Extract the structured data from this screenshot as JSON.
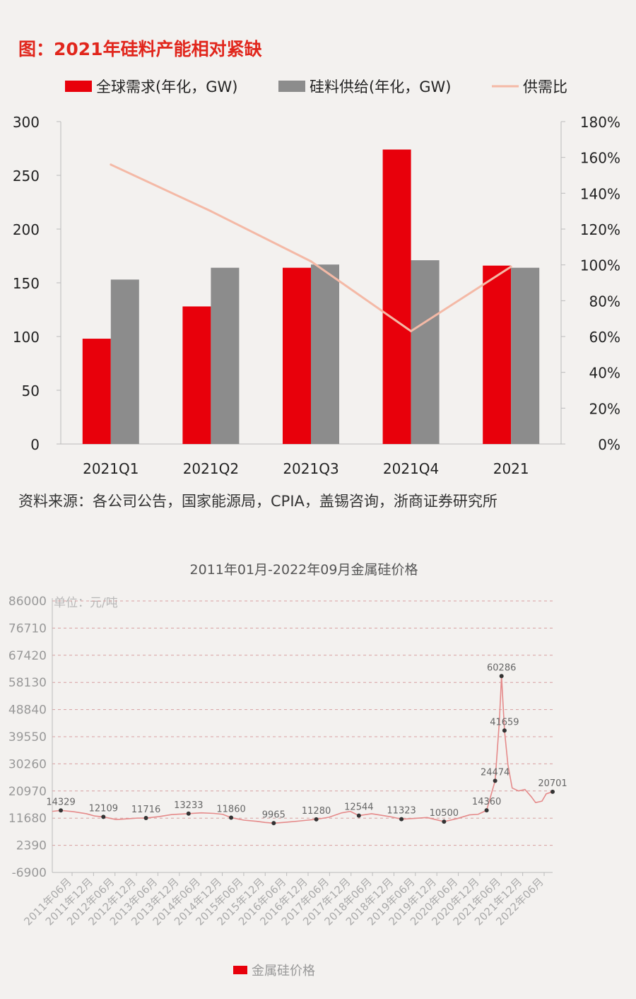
{
  "colors": {
    "demand": "#e8000b",
    "supply": "#8c8c8c",
    "ratio_line": "#f4b9a6",
    "price_line": "#e58a8a",
    "title_red": "#e1261c",
    "grid_dash": "#d8a0a0",
    "background": "#f3f1ef"
  },
  "chart_data": [
    {
      "type": "bar",
      "title": "图：2021年硅料产能相对紧缺",
      "categories": [
        "2021Q1",
        "2021Q2",
        "2021Q3",
        "2021Q4",
        "2021"
      ],
      "series": [
        {
          "name": "全球需求(年化，GW)",
          "kind": "bar",
          "axis": "left",
          "values": [
            98,
            128,
            164,
            274,
            166
          ]
        },
        {
          "name": "硅料供给(年化，GW)",
          "kind": "bar",
          "axis": "left",
          "values": [
            153,
            164,
            167,
            171,
            164
          ]
        },
        {
          "name": "供需比",
          "kind": "line",
          "axis": "right",
          "values": [
            1.56,
            1.3,
            1.02,
            0.63,
            0.99
          ]
        }
      ],
      "ylim": [
        0,
        300
      ],
      "y_ticks": [
        "300",
        "250",
        "200",
        "150",
        "100",
        "50",
        "0"
      ],
      "y2lim": [
        0,
        1.8
      ],
      "y2_ticks": [
        "180%",
        "160%",
        "140%",
        "120%",
        "100%",
        "80%",
        "60%",
        "40%",
        "20%",
        "0%"
      ],
      "legend_position": "top",
      "source": "资料来源：各公司公告，国家能源局，CPIA，盖锡咨询，浙商证券研究所"
    },
    {
      "type": "line",
      "title": "2011年01月-2022年09月金属硅价格",
      "unit_label": "单位：元/吨",
      "series_name": "金属硅价格",
      "ylim": [
        -6900,
        86000
      ],
      "y_ticks": [
        "86000",
        "76710",
        "67420",
        "58130",
        "48840",
        "39550",
        "30260",
        "20970",
        "11680",
        "2390",
        "-6900"
      ],
      "x_labels": [
        "2011年06月",
        "2011年12月",
        "2012年06月",
        "2012年12月",
        "2013年06月",
        "2013年12月",
        "2014年06月",
        "2014年12月",
        "2015年06月",
        "2015年12月",
        "2016年06月",
        "2016年12月",
        "2017年06月",
        "2017年12月",
        "2018年06月",
        "2018年12月",
        "2019年06月",
        "2019年12月",
        "2020年06月",
        "2020年12月",
        "2021年06月",
        "2021年12月",
        "2022年06月"
      ],
      "x_range": [
        2011.0,
        2022.75
      ],
      "line": [
        [
          2011.0,
          14000
        ],
        [
          2011.2,
          14329
        ],
        [
          2011.5,
          13900
        ],
        [
          2011.8,
          13200
        ],
        [
          2012.0,
          12400
        ],
        [
          2012.2,
          12109
        ],
        [
          2012.5,
          11200
        ],
        [
          2012.8,
          11500
        ],
        [
          2013.0,
          11700
        ],
        [
          2013.2,
          11716
        ],
        [
          2013.5,
          12200
        ],
        [
          2013.8,
          12900
        ],
        [
          2014.2,
          13233
        ],
        [
          2014.5,
          13500
        ],
        [
          2014.8,
          13300
        ],
        [
          2015.0,
          13000
        ],
        [
          2015.2,
          11860
        ],
        [
          2015.5,
          11000
        ],
        [
          2015.8,
          10600
        ],
        [
          2016.0,
          10200
        ],
        [
          2016.2,
          9965
        ],
        [
          2016.5,
          10300
        ],
        [
          2016.8,
          10700
        ],
        [
          2017.0,
          11000
        ],
        [
          2017.2,
          11280
        ],
        [
          2017.5,
          12000
        ],
        [
          2017.8,
          13500
        ],
        [
          2018.0,
          14000
        ],
        [
          2018.2,
          12544
        ],
        [
          2018.5,
          13200
        ],
        [
          2018.8,
          12500
        ],
        [
          2019.0,
          12000
        ],
        [
          2019.2,
          11323
        ],
        [
          2019.5,
          11600
        ],
        [
          2019.8,
          11900
        ],
        [
          2020.0,
          11200
        ],
        [
          2020.2,
          10500
        ],
        [
          2020.5,
          11500
        ],
        [
          2020.8,
          12800
        ],
        [
          2021.0,
          13000
        ],
        [
          2021.2,
          14360
        ],
        [
          2021.4,
          24474
        ],
        [
          2021.5,
          45000
        ],
        [
          2021.55,
          60286
        ],
        [
          2021.62,
          41659
        ],
        [
          2021.7,
          30000
        ],
        [
          2021.8,
          22000
        ],
        [
          2021.95,
          21000
        ],
        [
          2022.1,
          21500
        ],
        [
          2022.25,
          19000
        ],
        [
          2022.35,
          17000
        ],
        [
          2022.5,
          17500
        ],
        [
          2022.6,
          20000
        ],
        [
          2022.75,
          20701
        ]
      ],
      "labeled_points": [
        {
          "x": 2011.2,
          "y": 14329,
          "label": "14329"
        },
        {
          "x": 2012.2,
          "y": 12109,
          "label": "12109"
        },
        {
          "x": 2013.2,
          "y": 11716,
          "label": "11716"
        },
        {
          "x": 2014.2,
          "y": 13233,
          "label": "13233"
        },
        {
          "x": 2015.2,
          "y": 11860,
          "label": "11860"
        },
        {
          "x": 2016.2,
          "y": 9965,
          "label": "9965"
        },
        {
          "x": 2017.2,
          "y": 11280,
          "label": "11280"
        },
        {
          "x": 2018.2,
          "y": 12544,
          "label": "12544"
        },
        {
          "x": 2019.2,
          "y": 11323,
          "label": "11323"
        },
        {
          "x": 2020.2,
          "y": 10500,
          "label": "10500"
        },
        {
          "x": 2021.2,
          "y": 14360,
          "label": "14360"
        },
        {
          "x": 2021.4,
          "y": 24474,
          "label": "24474"
        },
        {
          "x": 2021.55,
          "y": 60286,
          "label": "60286"
        },
        {
          "x": 2021.62,
          "y": 41659,
          "label": "41659"
        },
        {
          "x": 2022.75,
          "y": 20701,
          "label": "20701"
        }
      ],
      "legend_position": "bottom",
      "grid": "dashed-horizontal"
    }
  ]
}
